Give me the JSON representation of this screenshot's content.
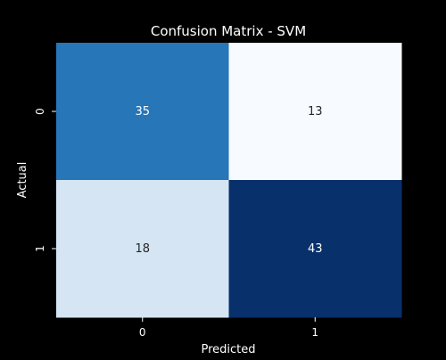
{
  "chart_data": {
    "type": "heatmap",
    "title": "Confusion Matrix - SVM",
    "xlabel": "Predicted",
    "ylabel": "Actual",
    "x_categories": [
      "0",
      "1"
    ],
    "y_categories": [
      "0",
      "1"
    ],
    "values": [
      [
        35,
        13
      ],
      [
        18,
        43
      ]
    ],
    "colormap": "Blues",
    "cell_colors": [
      [
        "#2676b8",
        "#f7fbff"
      ],
      [
        "#d5e5f4",
        "#08306b"
      ]
    ],
    "annotation_colors": [
      [
        "#ffffff",
        "#262626"
      ],
      [
        "#262626",
        "#ffffff"
      ]
    ],
    "background_color": "#000000",
    "text_color": "#ffffff",
    "colorbar": false
  }
}
